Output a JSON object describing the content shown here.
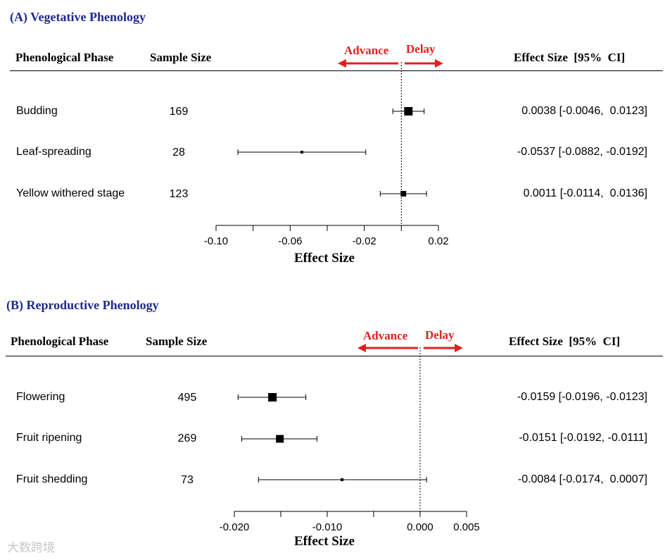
{
  "header": {
    "phase_label": "Phenological Phase",
    "sample_size_label": "Sample Size",
    "effect_size_label": "Effect Size  [95%  CI]",
    "advance_label": "Advance",
    "delay_label": "Delay"
  },
  "chart_data": [
    {
      "type": "forest",
      "title": "(A) Vegetative Phenology",
      "xlabel": "Effect Size",
      "xlim": [
        -0.1,
        0.02
      ],
      "ticks": [
        -0.1,
        -0.08,
        -0.06,
        -0.04,
        -0.02,
        0.0,
        0.02
      ],
      "tick_labels": [
        "-0.10",
        "-0.06",
        "-0.02",
        "0.02"
      ],
      "labeled_tick_values": [
        -0.1,
        -0.06,
        -0.02,
        0.02
      ],
      "reference_line": 0,
      "rows": [
        {
          "phase": "Budding",
          "sample_size": "169",
          "estimate": 0.0038,
          "lower": -0.0046,
          "upper": 0.0123,
          "ci_text": "0.0038 [-0.0046,  0.0123]"
        },
        {
          "phase": "Leaf-spreading",
          "sample_size": "28",
          "estimate": -0.0537,
          "lower": -0.0882,
          "upper": -0.0192,
          "ci_text": "-0.0537 [-0.0882, -0.0192]"
        },
        {
          "phase": "Yellow withered stage",
          "sample_size": "123",
          "estimate": 0.0011,
          "lower": -0.0114,
          "upper": 0.0136,
          "ci_text": "0.0011 [-0.0114,  0.0136]"
        }
      ]
    },
    {
      "type": "forest",
      "title": "(B) Reproductive Phenology",
      "xlabel": "Effect Size",
      "xlim": [
        -0.02,
        0.005
      ],
      "ticks": [
        -0.02,
        -0.015,
        -0.01,
        -0.005,
        0.0,
        0.005
      ],
      "tick_labels": [
        "-0.020",
        "-0.010",
        "0.000",
        "0.005"
      ],
      "labeled_tick_values": [
        -0.02,
        -0.01,
        0.0,
        0.005
      ],
      "reference_line": 0,
      "rows": [
        {
          "phase": "Flowering",
          "sample_size": "495",
          "estimate": -0.0159,
          "lower": -0.0196,
          "upper": -0.0123,
          "ci_text": "-0.0159 [-0.0196, -0.0123]"
        },
        {
          "phase": "Fruit ripening",
          "sample_size": "269",
          "estimate": -0.0151,
          "lower": -0.0192,
          "upper": -0.0111,
          "ci_text": "-0.0151 [-0.0192, -0.0111]"
        },
        {
          "phase": "Fruit shedding",
          "sample_size": "73",
          "estimate": -0.0084,
          "lower": -0.0174,
          "upper": 0.0007,
          "ci_text": "-0.0084 [-0.0174,  0.0007]"
        }
      ]
    }
  ],
  "watermark": "大数跨境",
  "colors": {
    "title": "#1f2a8c",
    "arrow": "#e02020"
  }
}
